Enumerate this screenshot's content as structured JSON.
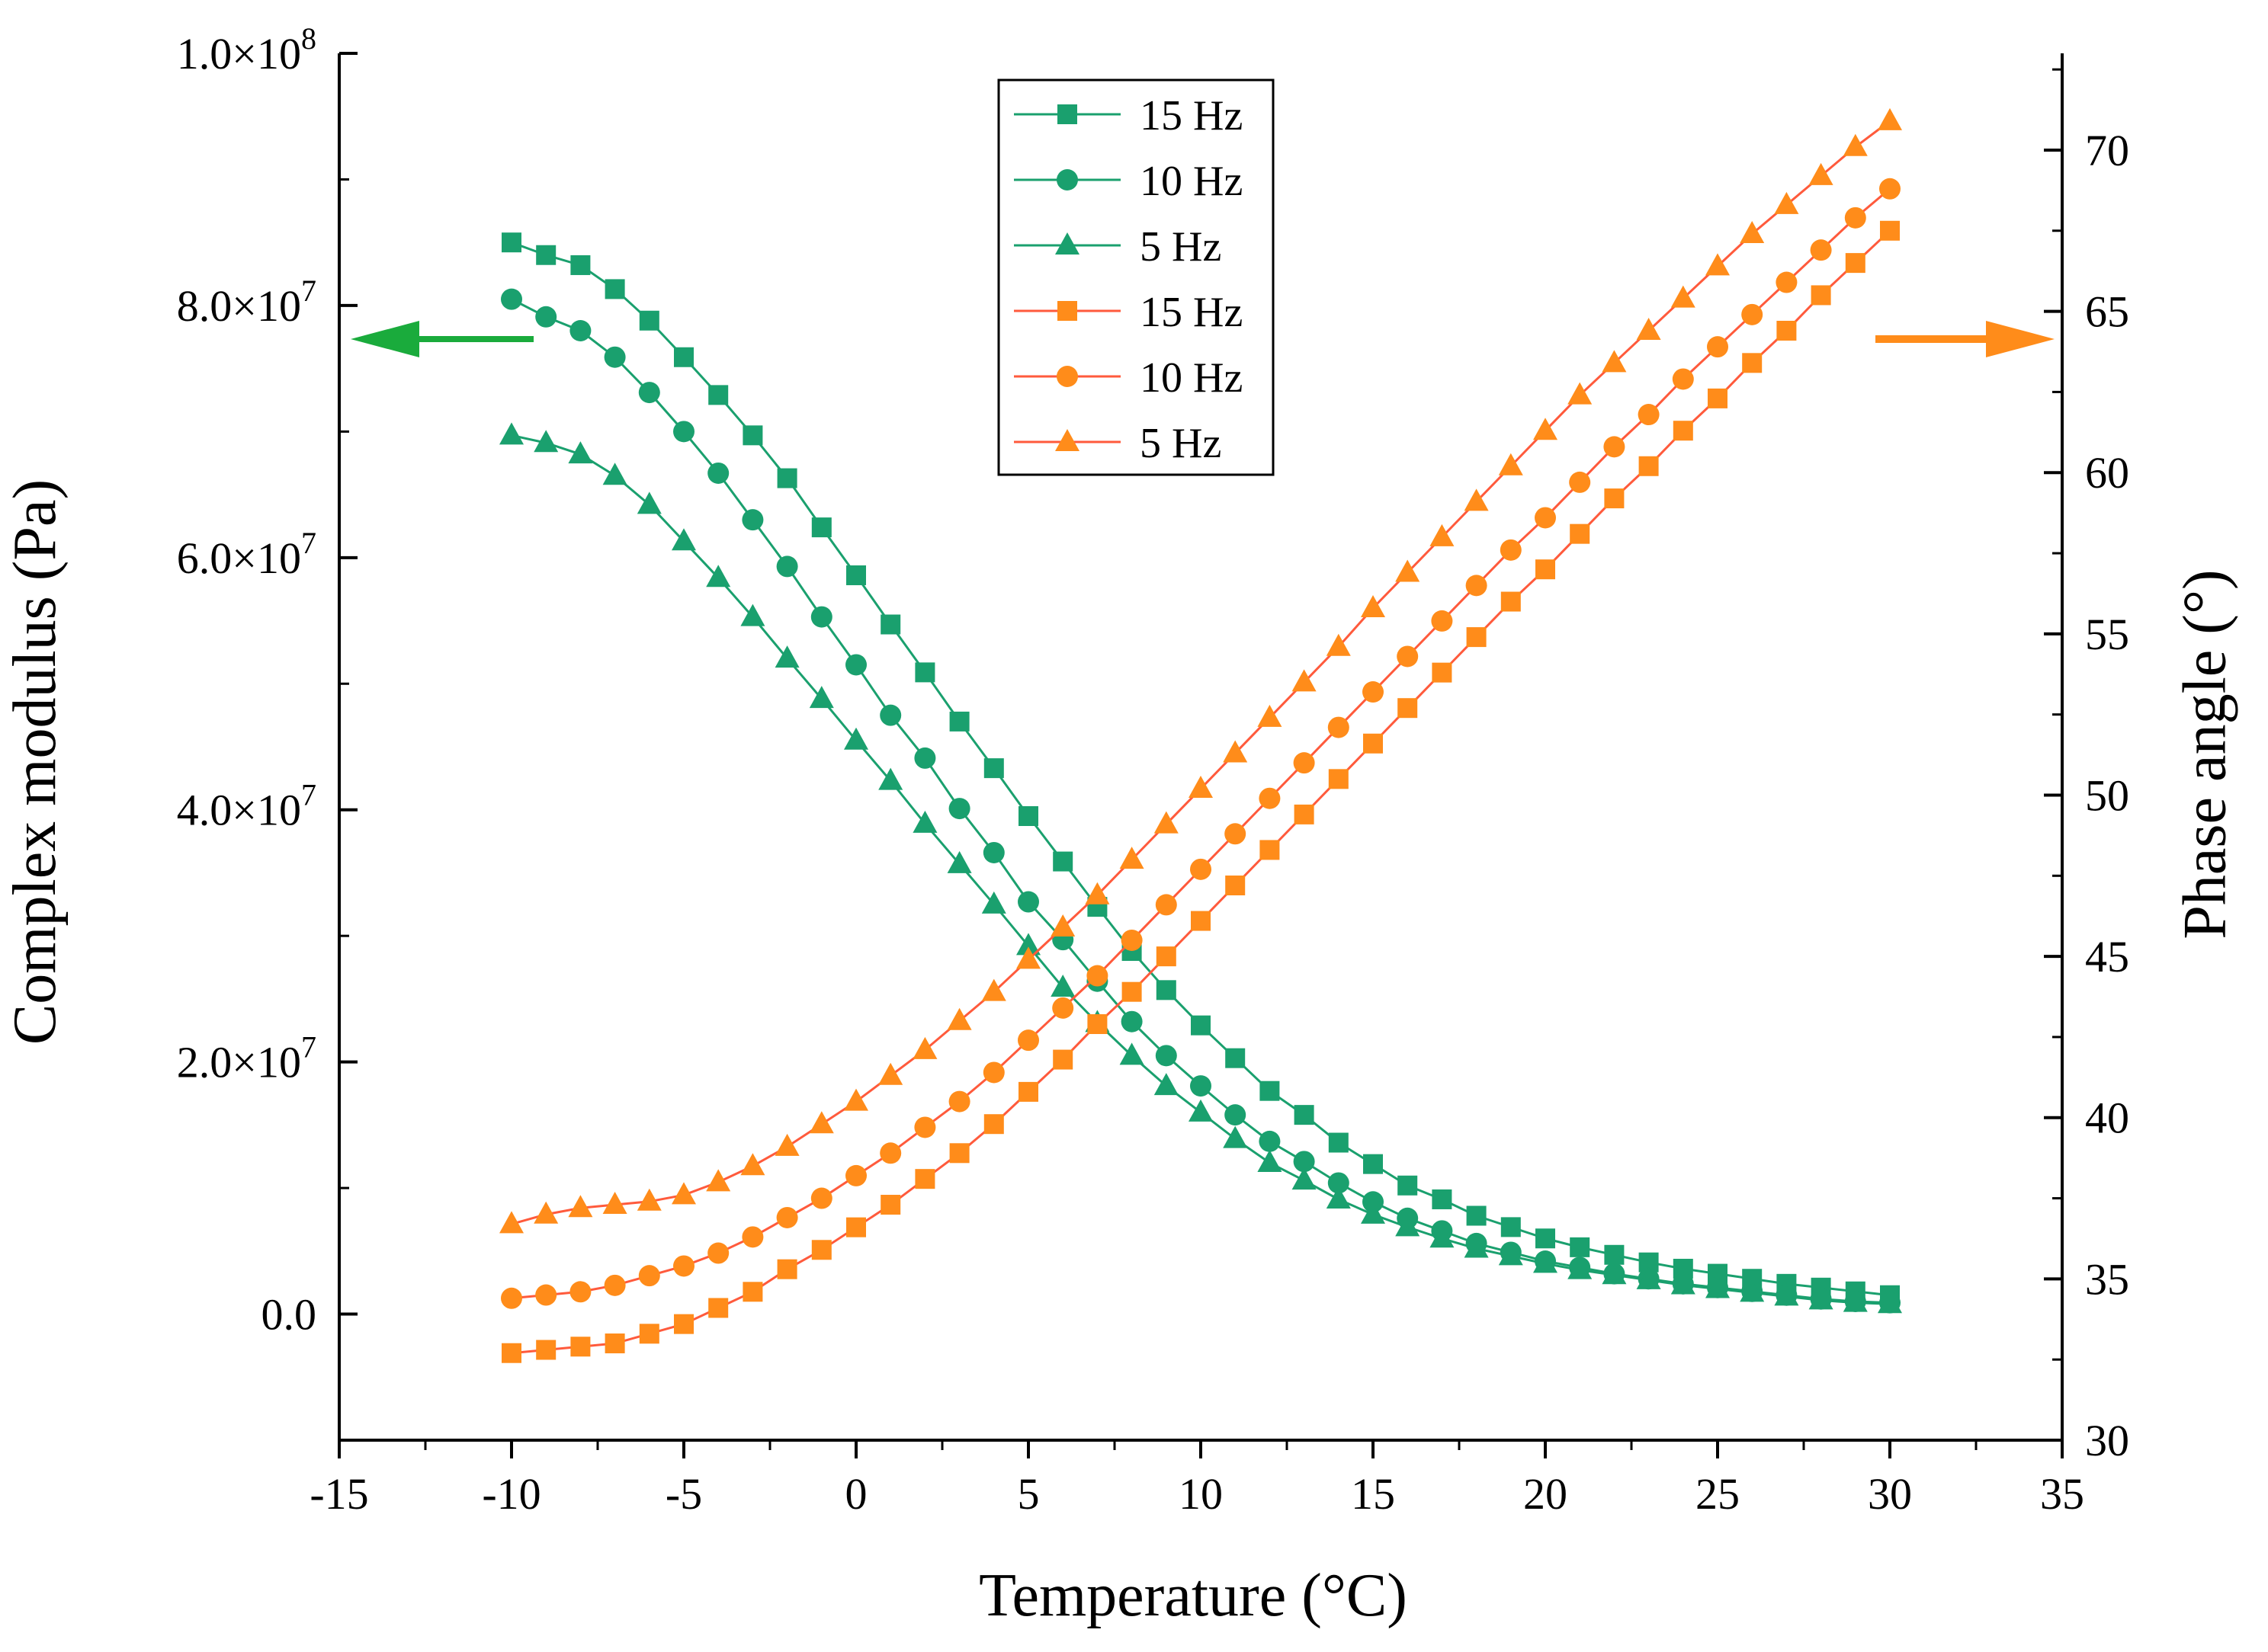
{
  "chart_data": {
    "type": "line",
    "title": "",
    "xlabel": "Temperature (°C)",
    "ylabel_left": "Complex modulus (Pa)",
    "ylabel_right": "Phase angle (°)",
    "xlim": [
      -15,
      35
    ],
    "ylim_left": [
      -10000000,
      100000000
    ],
    "ylim_right": [
      30,
      73
    ],
    "x_ticks": [
      -15,
      -10,
      -5,
      0,
      5,
      10,
      15,
      20,
      25,
      30,
      35
    ],
    "x_tick_labels": [
      "-15",
      "-10",
      "-5",
      "0",
      "5",
      "10",
      "15",
      "20",
      "25",
      "30",
      "35"
    ],
    "y_left_ticks": [
      0,
      20000000,
      40000000,
      60000000,
      80000000,
      100000000
    ],
    "y_left_tick_labels": [
      {
        "mant": "0.0",
        "exp": ""
      },
      {
        "mant": "2.0×10",
        "exp": "7"
      },
      {
        "mant": "4.0×10",
        "exp": "7"
      },
      {
        "mant": "6.0×10",
        "exp": "7"
      },
      {
        "mant": "8.0×10",
        "exp": "7"
      },
      {
        "mant": "1.0×10",
        "exp": "8"
      }
    ],
    "y_right_ticks": [
      30,
      35,
      40,
      45,
      50,
      55,
      60,
      65,
      70
    ],
    "y_right_tick_labels": [
      "30",
      "35",
      "40",
      "45",
      "50",
      "55",
      "60",
      "65",
      "70"
    ],
    "colors": {
      "modulus": "#1aa06e",
      "phase": "#ff8c1a",
      "modulus_line": "#1aa06e",
      "phase_line": "#ff5a3c",
      "arrow_left": "#1aab3c",
      "arrow_right": "#ff8c1a"
    },
    "legend_position": "top-center",
    "x": [
      -10,
      -9,
      -8,
      -7,
      -6,
      -5,
      -4,
      -3,
      -2,
      -1,
      0,
      1,
      2,
      3,
      4,
      5,
      6,
      7,
      8,
      9,
      10,
      11,
      12,
      13,
      14,
      15,
      16,
      17,
      18,
      19,
      20,
      21,
      22,
      23,
      24,
      25,
      26,
      27,
      28,
      29,
      30
    ],
    "series": [
      {
        "name": "15 Hz",
        "axis": "left",
        "marker": "square",
        "color": "#1aa06e",
        "values": [
          85000000,
          84000000,
          83200000,
          81300000,
          78800000,
          75900000,
          72900000,
          69700000,
          66300000,
          62400000,
          58600000,
          54700000,
          50900000,
          47000000,
          43300000,
          39500000,
          35900000,
          32300000,
          28800000,
          25700000,
          22900000,
          20300000,
          17700000,
          15800000,
          13600000,
          11900000,
          10200000,
          9100000,
          7800000,
          6900000,
          6000000,
          5300000,
          4700000,
          4100000,
          3600000,
          3200000,
          2800000,
          2400000,
          2100000,
          1800000,
          1500000
        ]
      },
      {
        "name": "10 Hz",
        "axis": "left",
        "marker": "circle",
        "color": "#1aa06e",
        "values": [
          80500000,
          79100000,
          78000000,
          75900000,
          73100000,
          70000000,
          66700000,
          63000000,
          59300000,
          55300000,
          51500000,
          47500000,
          44100000,
          40100000,
          36600000,
          32700000,
          29700000,
          26400000,
          23200000,
          20500000,
          18100000,
          15800000,
          13700000,
          12100000,
          10400000,
          8900000,
          7600000,
          6600000,
          5600000,
          4900000,
          4200000,
          3700000,
          3200000,
          2800000,
          2400000,
          2100000,
          1800000,
          1500000,
          1200000,
          1000000,
          900000
        ]
      },
      {
        "name": "5 Hz",
        "axis": "left",
        "marker": "triangle",
        "color": "#1aa06e",
        "values": [
          69700000,
          69100000,
          68200000,
          66500000,
          64200000,
          61300000,
          58400000,
          55300000,
          52000000,
          48800000,
          45500000,
          42300000,
          38900000,
          35700000,
          32500000,
          29200000,
          25900000,
          23100000,
          20500000,
          18100000,
          16000000,
          13900000,
          12000000,
          10600000,
          9100000,
          7900000,
          6900000,
          6000000,
          5200000,
          4600000,
          4000000,
          3500000,
          3100000,
          2700000,
          2300000,
          2000000,
          1700000,
          1400000,
          1100000,
          900000,
          800000
        ]
      },
      {
        "name": "15 Hz",
        "axis": "right",
        "marker": "square",
        "color": "#ff8c1a",
        "values": [
          32.7,
          32.8,
          32.9,
          33.0,
          33.3,
          33.6,
          34.1,
          34.6,
          35.3,
          35.9,
          36.6,
          37.3,
          38.1,
          38.9,
          39.8,
          40.8,
          41.8,
          42.9,
          43.9,
          45.0,
          46.1,
          47.2,
          48.3,
          49.4,
          50.5,
          51.6,
          52.7,
          53.8,
          54.9,
          56.0,
          57.0,
          58.1,
          59.2,
          60.2,
          61.3,
          62.3,
          63.4,
          64.4,
          65.5,
          66.5,
          67.5
        ]
      },
      {
        "name": "10 Hz",
        "axis": "right",
        "marker": "circle",
        "color": "#ff8c1a",
        "values": [
          34.4,
          34.5,
          34.6,
          34.8,
          35.1,
          35.4,
          35.8,
          36.3,
          36.9,
          37.5,
          38.2,
          38.9,
          39.7,
          40.5,
          41.4,
          42.4,
          43.4,
          44.4,
          45.5,
          46.6,
          47.7,
          48.8,
          49.9,
          51.0,
          52.1,
          53.2,
          54.3,
          55.4,
          56.5,
          57.6,
          58.6,
          59.7,
          60.8,
          61.8,
          62.9,
          63.9,
          64.9,
          65.9,
          66.9,
          67.9,
          68.8
        ]
      },
      {
        "name": "5 Hz",
        "axis": "right",
        "marker": "triangle",
        "color": "#ff8c1a",
        "values": [
          36.7,
          37.0,
          37.2,
          37.3,
          37.4,
          37.6,
          38.0,
          38.5,
          39.1,
          39.8,
          40.5,
          41.3,
          42.1,
          43.0,
          43.9,
          44.9,
          45.9,
          46.9,
          48.0,
          49.1,
          50.2,
          51.3,
          52.4,
          53.5,
          54.6,
          55.8,
          56.9,
          58.0,
          59.1,
          60.2,
          61.3,
          62.4,
          63.4,
          64.4,
          65.4,
          66.4,
          67.4,
          68.3,
          69.2,
          70.1,
          70.9
        ]
      }
    ]
  }
}
